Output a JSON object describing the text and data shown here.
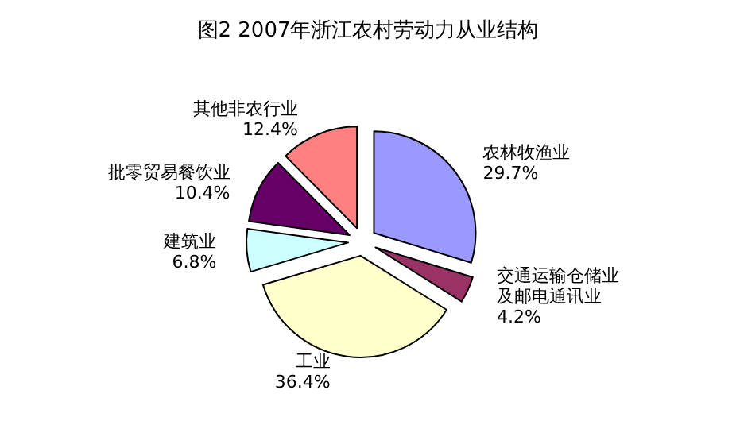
{
  "chart_data": {
    "type": "pie",
    "title": "图2 2007年浙江农村劳动力从业结构",
    "categories": [
      "农林牧渔业",
      "交通运输仓储业及邮电通讯业",
      "工业",
      "建筑业",
      "批零贸易餐饮业",
      "其他非农行业"
    ],
    "values": [
      29.7,
      4.2,
      36.4,
      6.8,
      10.4,
      12.4
    ],
    "value_labels": [
      "29.7%",
      "4.2%",
      "36.4%",
      "6.8%",
      "10.4%",
      "12.4%"
    ],
    "colors": [
      "#9999ff",
      "#993366",
      "#ffffcc",
      "#ccffff",
      "#660066",
      "#ff8080"
    ],
    "legend": false
  }
}
